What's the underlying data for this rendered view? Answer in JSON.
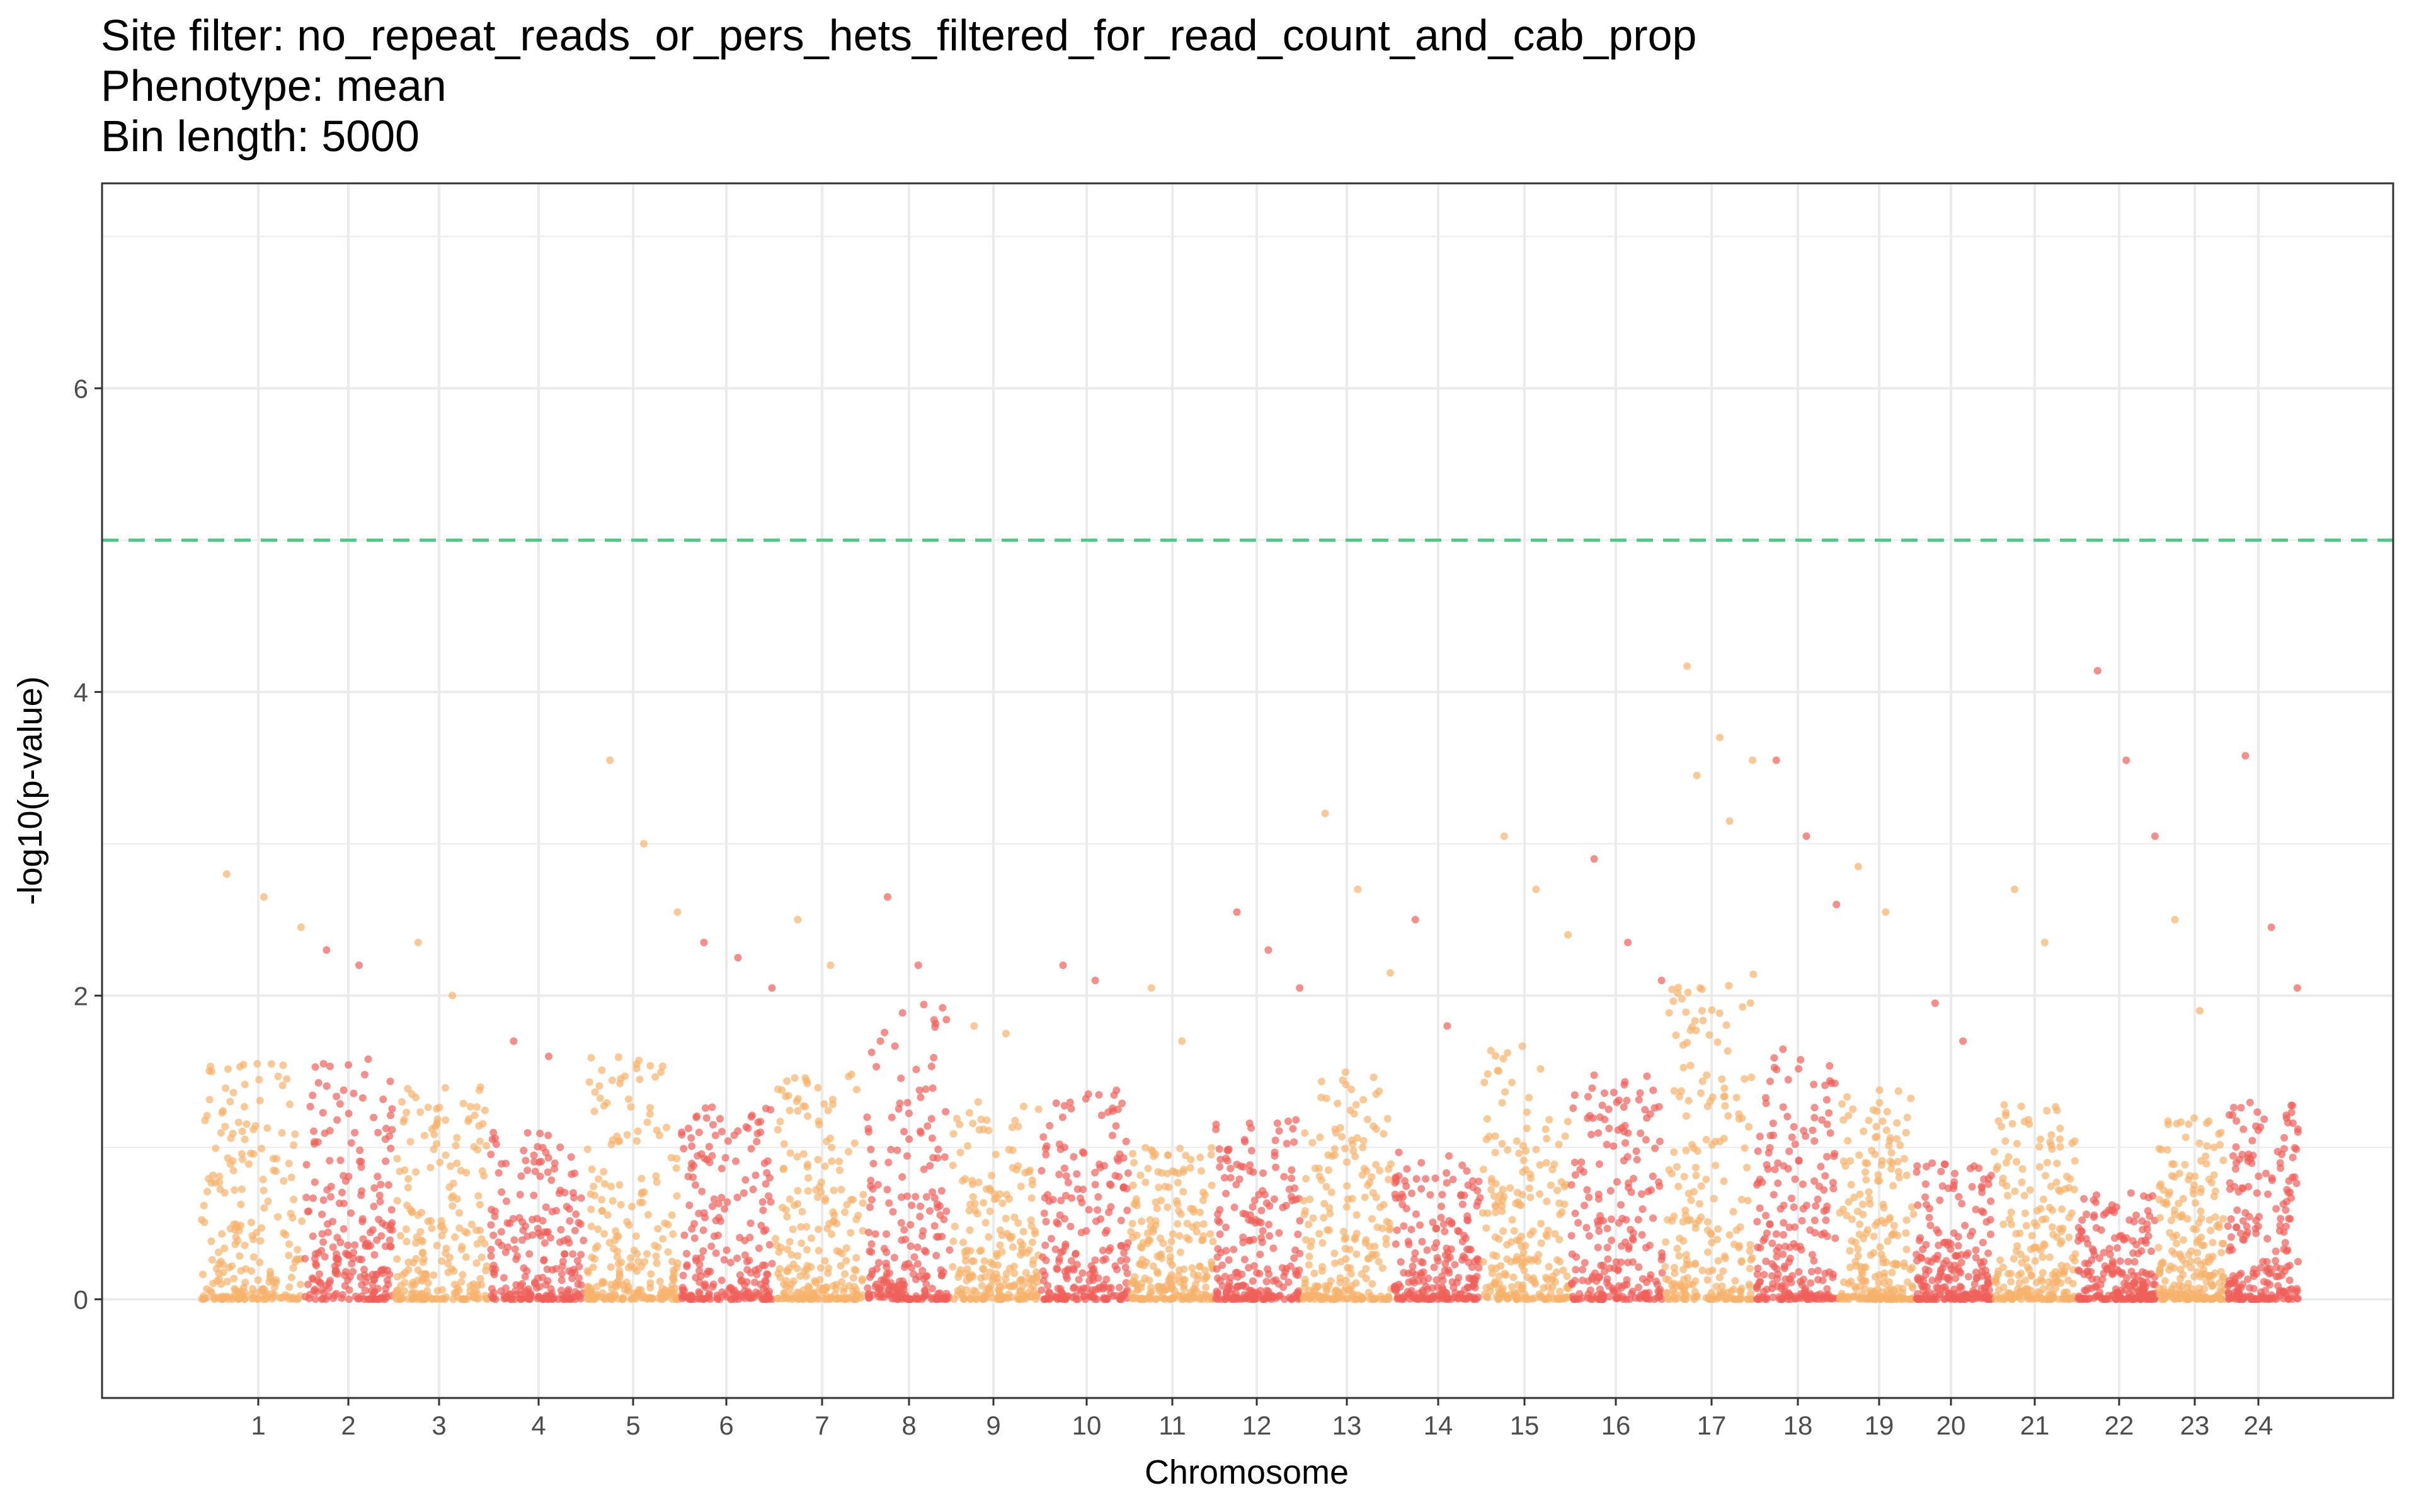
{
  "chart_data": {
    "type": "scatter",
    "title_lines": [
      "Site filter: no_repeat_reads_or_pers_hets_filtered_for_read_count_and_cab_prop",
      "Phenotype: mean",
      "Bin length: 5000"
    ],
    "xlabel": "Chromosome",
    "ylabel": "-log10(p-value)",
    "ylim": [
      -0.65,
      7.35
    ],
    "yticks": [
      0,
      2,
      4,
      6
    ],
    "ytick_labels": [
      "0",
      "2",
      "4",
      "6"
    ],
    "grid": true,
    "legend": "none",
    "colors": {
      "odd": "#F6B26B",
      "even": "#F0605A",
      "threshold": "#4DCB82",
      "grid": "#EBEBEB",
      "border": "#333333"
    },
    "threshold": {
      "value": 5.0,
      "style": "dashed"
    },
    "chromosomes": [
      {
        "label": "1",
        "base_max": 1.6,
        "peak": 2.8,
        "outliers": [
          2.8,
          2.65,
          2.45
        ]
      },
      {
        "label": "2",
        "base_max": 1.6,
        "peak": 2.3,
        "outliers": [
          2.3,
          2.2
        ]
      },
      {
        "label": "3",
        "base_max": 1.4,
        "peak": 2.35,
        "outliers": [
          2.35,
          2.0
        ]
      },
      {
        "label": "4",
        "base_max": 1.1,
        "peak": 1.7,
        "outliers": [
          1.7,
          1.6
        ]
      },
      {
        "label": "5",
        "base_max": 1.6,
        "peak": 3.55,
        "outliers": [
          3.55,
          3.0,
          2.55
        ]
      },
      {
        "label": "6",
        "base_max": 1.3,
        "peak": 2.35,
        "outliers": [
          2.35,
          2.25,
          2.05
        ]
      },
      {
        "label": "7",
        "base_max": 1.5,
        "peak": 2.5,
        "outliers": [
          2.5,
          2.2
        ]
      },
      {
        "label": "8",
        "base_max": 2.0,
        "peak": 2.65,
        "outliers": [
          2.65,
          2.2
        ]
      },
      {
        "label": "9",
        "base_max": 1.3,
        "peak": 1.8,
        "outliers": [
          1.8,
          1.75
        ]
      },
      {
        "label": "10",
        "base_max": 1.4,
        "peak": 2.2,
        "outliers": [
          2.2,
          2.1
        ]
      },
      {
        "label": "11",
        "base_max": 1.0,
        "peak": 2.05,
        "outliers": [
          2.05,
          1.7
        ]
      },
      {
        "label": "12",
        "base_max": 1.2,
        "peak": 2.55,
        "outliers": [
          2.55,
          2.3,
          2.05
        ]
      },
      {
        "label": "13",
        "base_max": 1.5,
        "peak": 3.2,
        "outliers": [
          3.2,
          2.7,
          2.15
        ]
      },
      {
        "label": "14",
        "base_max": 1.0,
        "peak": 2.5,
        "outliers": [
          2.5,
          1.8
        ]
      },
      {
        "label": "15",
        "base_max": 1.7,
        "peak": 3.05,
        "outliers": [
          3.05,
          2.7,
          2.4
        ]
      },
      {
        "label": "16",
        "base_max": 1.5,
        "peak": 2.9,
        "outliers": [
          2.9,
          2.35,
          2.1
        ]
      },
      {
        "label": "17",
        "base_max": 2.2,
        "peak": 4.17,
        "outliers": [
          4.17,
          3.7,
          3.55,
          3.45,
          3.15
        ]
      },
      {
        "label": "18",
        "base_max": 1.7,
        "peak": 3.55,
        "outliers": [
          3.55,
          3.05,
          2.6
        ]
      },
      {
        "label": "19",
        "base_max": 1.4,
        "peak": 2.85,
        "outliers": [
          2.85,
          2.55
        ]
      },
      {
        "label": "20",
        "base_max": 0.9,
        "peak": 1.95,
        "outliers": [
          1.95,
          1.7
        ]
      },
      {
        "label": "21",
        "base_max": 1.3,
        "peak": 2.7,
        "outliers": [
          2.7,
          2.35
        ]
      },
      {
        "label": "22",
        "base_max": 0.7,
        "peak": 4.14,
        "outliers": [
          4.14,
          3.55,
          3.05
        ]
      },
      {
        "label": "23",
        "base_max": 1.2,
        "peak": 2.5,
        "outliers": [
          2.5,
          1.9
        ]
      },
      {
        "label": "24",
        "base_max": 1.3,
        "peak": 3.58,
        "outliers": [
          3.58,
          2.45,
          2.05
        ]
      }
    ]
  }
}
